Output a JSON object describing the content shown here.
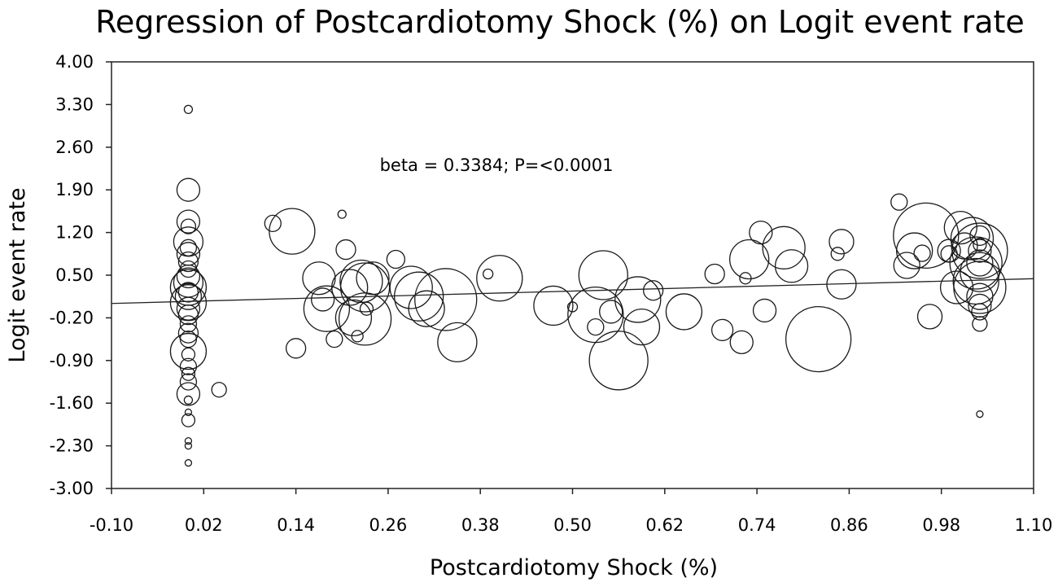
{
  "chart_data": {
    "type": "scatter",
    "title": "Regression of Postcardiotomy Shock (%) on Logit event rate",
    "xlabel": "Postcardiotomy Shock (%)",
    "ylabel": "Logit event rate",
    "xlim": [
      -0.1,
      1.1
    ],
    "ylim": [
      -3.0,
      4.0
    ],
    "xticks": [
      "-0.10",
      "0.02",
      "0.14",
      "0.26",
      "0.38",
      "0.50",
      "0.62",
      "0.74",
      "0.86",
      "0.98",
      "1.10"
    ],
    "yticks": [
      "4.00",
      "3.30",
      "2.60",
      "1.90",
      "1.20",
      "0.50",
      "-0.20",
      "-0.90",
      "-1.60",
      "-2.30",
      "-3.00"
    ],
    "annotation": "beta = 0.3384; P=<0.0001",
    "regression": {
      "slope": 0.3384,
      "intercept": 0.07
    },
    "grid": false,
    "points": [
      {
        "x": 0.0,
        "y": 3.22,
        "r": 5
      },
      {
        "x": 0.0,
        "y": 1.9,
        "r": 14
      },
      {
        "x": 0.0,
        "y": 1.38,
        "r": 14
      },
      {
        "x": 0.0,
        "y": 1.3,
        "r": 9
      },
      {
        "x": 0.0,
        "y": 1.05,
        "r": 18
      },
      {
        "x": 0.0,
        "y": 0.95,
        "r": 10
      },
      {
        "x": 0.0,
        "y": 0.85,
        "r": 14
      },
      {
        "x": 0.0,
        "y": 0.72,
        "r": 12
      },
      {
        "x": 0.0,
        "y": 0.6,
        "r": 10
      },
      {
        "x": 0.0,
        "y": 0.48,
        "r": 14
      },
      {
        "x": 0.0,
        "y": 0.38,
        "r": 18
      },
      {
        "x": 0.0,
        "y": 0.3,
        "r": 22
      },
      {
        "x": 0.0,
        "y": 0.22,
        "r": 12
      },
      {
        "x": 0.0,
        "y": 0.15,
        "r": 16
      },
      {
        "x": 0.0,
        "y": 0.05,
        "r": 22
      },
      {
        "x": 0.0,
        "y": -0.05,
        "r": 14
      },
      {
        "x": 0.0,
        "y": -0.15,
        "r": 12
      },
      {
        "x": 0.0,
        "y": -0.3,
        "r": 10
      },
      {
        "x": 0.0,
        "y": -0.45,
        "r": 12
      },
      {
        "x": 0.0,
        "y": -0.55,
        "r": 10
      },
      {
        "x": 0.0,
        "y": -0.75,
        "r": 22
      },
      {
        "x": 0.0,
        "y": -0.8,
        "r": 8
      },
      {
        "x": 0.0,
        "y": -1.0,
        "r": 10
      },
      {
        "x": 0.0,
        "y": -1.12,
        "r": 8
      },
      {
        "x": 0.0,
        "y": -1.25,
        "r": 10
      },
      {
        "x": 0.0,
        "y": -1.45,
        "r": 14
      },
      {
        "x": 0.0,
        "y": -1.55,
        "r": 5
      },
      {
        "x": 0.0,
        "y": -1.75,
        "r": 4
      },
      {
        "x": 0.0,
        "y": -1.88,
        "r": 8
      },
      {
        "x": 0.0,
        "y": -2.22,
        "r": 4
      },
      {
        "x": 0.0,
        "y": -2.3,
        "r": 4
      },
      {
        "x": 0.0,
        "y": -2.58,
        "r": 4
      },
      {
        "x": 0.04,
        "y": -1.38,
        "r": 9
      },
      {
        "x": 0.11,
        "y": 1.35,
        "r": 10
      },
      {
        "x": 0.135,
        "y": 1.22,
        "r": 28
      },
      {
        "x": 0.14,
        "y": -0.7,
        "r": 12
      },
      {
        "x": 0.17,
        "y": 0.45,
        "r": 20
      },
      {
        "x": 0.175,
        "y": 0.1,
        "r": 14
      },
      {
        "x": 0.18,
        "y": -0.05,
        "r": 28
      },
      {
        "x": 0.19,
        "y": -0.55,
        "r": 10
      },
      {
        "x": 0.2,
        "y": 1.5,
        "r": 5
      },
      {
        "x": 0.205,
        "y": 0.92,
        "r": 12
      },
      {
        "x": 0.21,
        "y": 0.3,
        "r": 22
      },
      {
        "x": 0.215,
        "y": -0.2,
        "r": 22
      },
      {
        "x": 0.22,
        "y": -0.5,
        "r": 7
      },
      {
        "x": 0.225,
        "y": 0.4,
        "r": 26
      },
      {
        "x": 0.23,
        "y": 0.3,
        "r": 30
      },
      {
        "x": 0.23,
        "y": -0.22,
        "r": 32
      },
      {
        "x": 0.232,
        "y": -0.05,
        "r": 8
      },
      {
        "x": 0.24,
        "y": 0.45,
        "r": 20
      },
      {
        "x": 0.27,
        "y": 0.76,
        "r": 11
      },
      {
        "x": 0.29,
        "y": 0.3,
        "r": 26
      },
      {
        "x": 0.3,
        "y": 0.15,
        "r": 30
      },
      {
        "x": 0.31,
        "y": -0.05,
        "r": 22
      },
      {
        "x": 0.335,
        "y": 0.1,
        "r": 38
      },
      {
        "x": 0.35,
        "y": -0.6,
        "r": 24
      },
      {
        "x": 0.39,
        "y": 0.52,
        "r": 6
      },
      {
        "x": 0.405,
        "y": 0.45,
        "r": 28
      },
      {
        "x": 0.475,
        "y": 0.0,
        "r": 24
      },
      {
        "x": 0.5,
        "y": -0.02,
        "r": 6
      },
      {
        "x": 0.53,
        "y": -0.15,
        "r": 34
      },
      {
        "x": 0.53,
        "y": -0.35,
        "r": 10
      },
      {
        "x": 0.54,
        "y": 0.5,
        "r": 30
      },
      {
        "x": 0.55,
        "y": -0.1,
        "r": 14
      },
      {
        "x": 0.56,
        "y": -0.9,
        "r": 36
      },
      {
        "x": 0.585,
        "y": 0.1,
        "r": 28
      },
      {
        "x": 0.59,
        "y": -0.35,
        "r": 22
      },
      {
        "x": 0.605,
        "y": 0.25,
        "r": 12
      },
      {
        "x": 0.645,
        "y": -0.1,
        "r": 22
      },
      {
        "x": 0.685,
        "y": 0.52,
        "r": 12
      },
      {
        "x": 0.695,
        "y": -0.4,
        "r": 13
      },
      {
        "x": 0.72,
        "y": -0.6,
        "r": 14
      },
      {
        "x": 0.725,
        "y": 0.45,
        "r": 7
      },
      {
        "x": 0.73,
        "y": 0.76,
        "r": 24
      },
      {
        "x": 0.745,
        "y": 1.2,
        "r": 14
      },
      {
        "x": 0.75,
        "y": -0.08,
        "r": 14
      },
      {
        "x": 0.775,
        "y": 0.95,
        "r": 26
      },
      {
        "x": 0.785,
        "y": 0.65,
        "r": 20
      },
      {
        "x": 0.82,
        "y": -0.55,
        "r": 40
      },
      {
        "x": 0.845,
        "y": 0.85,
        "r": 8
      },
      {
        "x": 0.85,
        "y": 1.05,
        "r": 15
      },
      {
        "x": 0.85,
        "y": 0.35,
        "r": 18
      },
      {
        "x": 0.925,
        "y": 1.7,
        "r": 10
      },
      {
        "x": 0.935,
        "y": 0.66,
        "r": 16
      },
      {
        "x": 0.945,
        "y": 0.9,
        "r": 22
      },
      {
        "x": 0.955,
        "y": 0.86,
        "r": 10
      },
      {
        "x": 0.96,
        "y": 1.15,
        "r": 40
      },
      {
        "x": 0.965,
        "y": -0.18,
        "r": 15
      },
      {
        "x": 0.99,
        "y": 0.9,
        "r": 14
      },
      {
        "x": 0.99,
        "y": 0.85,
        "r": 10
      },
      {
        "x": 1.0,
        "y": 0.3,
        "r": 20
      },
      {
        "x": 1.005,
        "y": 1.28,
        "r": 20
      },
      {
        "x": 1.01,
        "y": 0.98,
        "r": 16
      },
      {
        "x": 1.02,
        "y": 1.1,
        "r": 26
      },
      {
        "x": 1.025,
        "y": 0.7,
        "r": 32
      },
      {
        "x": 1.025,
        "y": 0.4,
        "r": 28
      },
      {
        "x": 1.03,
        "y": 1.15,
        "r": 12
      },
      {
        "x": 1.03,
        "y": 0.9,
        "r": 34
      },
      {
        "x": 1.03,
        "y": 0.7,
        "r": 16
      },
      {
        "x": 1.03,
        "y": 0.55,
        "r": 24
      },
      {
        "x": 1.03,
        "y": 0.3,
        "r": 32
      },
      {
        "x": 1.03,
        "y": 0.15,
        "r": 16
      },
      {
        "x": 1.03,
        "y": 0.0,
        "r": 14
      },
      {
        "x": 1.03,
        "y": -0.1,
        "r": 10
      },
      {
        "x": 1.03,
        "y": -0.3,
        "r": 9
      },
      {
        "x": 1.03,
        "y": 1.0,
        "r": 8
      },
      {
        "x": 1.03,
        "y": 0.9,
        "r": 14
      },
      {
        "x": 1.03,
        "y": -1.78,
        "r": 4
      }
    ]
  }
}
